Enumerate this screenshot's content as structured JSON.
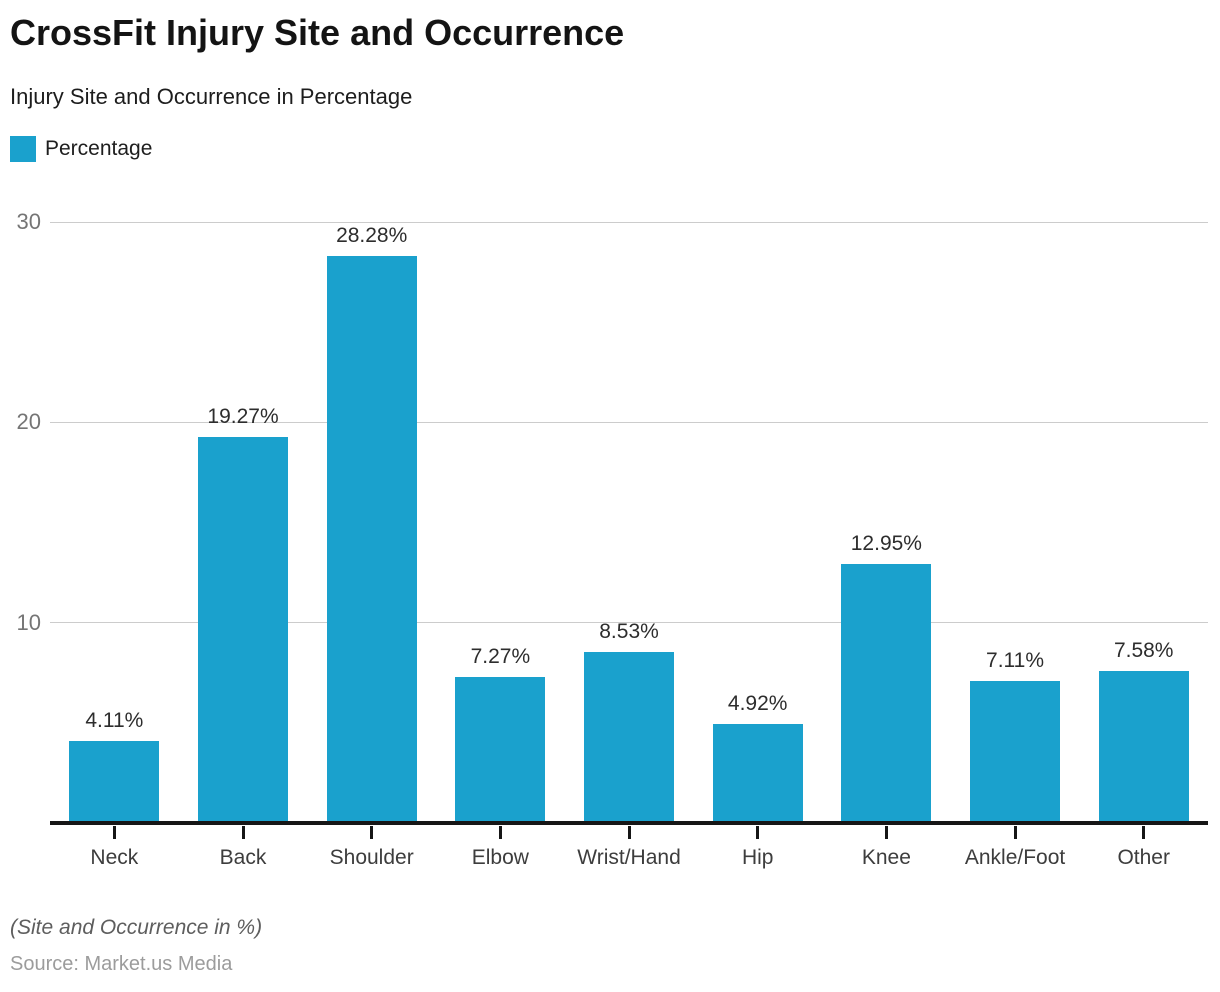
{
  "header": {
    "title": "CrossFit Injury Site and Occurrence",
    "subtitle": "Injury Site and Occurrence in Percentage"
  },
  "legend": {
    "label": "Percentage"
  },
  "chart_data": {
    "type": "bar",
    "title": "CrossFit Injury Site and Occurrence",
    "subtitle": "Injury Site and Occurrence in Percentage",
    "categories": [
      "Neck",
      "Back",
      "Shoulder",
      "Elbow",
      "Wrist/Hand",
      "Hip",
      "Knee",
      "Ankle/Foot",
      "Other"
    ],
    "series": [
      {
        "name": "Percentage",
        "values": [
          4.11,
          19.27,
          28.28,
          7.27,
          8.53,
          4.92,
          12.95,
          7.11,
          7.58
        ],
        "labels": [
          "4.11%",
          "19.27%",
          "28.28%",
          "7.27%",
          "8.53%",
          "4.92%",
          "12.95%",
          "7.11%",
          "7.58%"
        ]
      }
    ],
    "xlabel": "",
    "ylabel": "",
    "ylim": [
      0,
      31.5
    ],
    "yticks": [
      10,
      20,
      30
    ],
    "grid": true,
    "legend_position": "top-left",
    "colors": {
      "bar": "#1AA1CD",
      "gridline": "#cccccc",
      "axis_line": "#161616",
      "value_label": "#2d2d2d",
      "x_tick_label": "#3d3d3d",
      "y_tick_label": "#757575"
    }
  },
  "footer": {
    "note": "(Site and Occurrence in %)",
    "source": "Source: Market.us Media"
  }
}
